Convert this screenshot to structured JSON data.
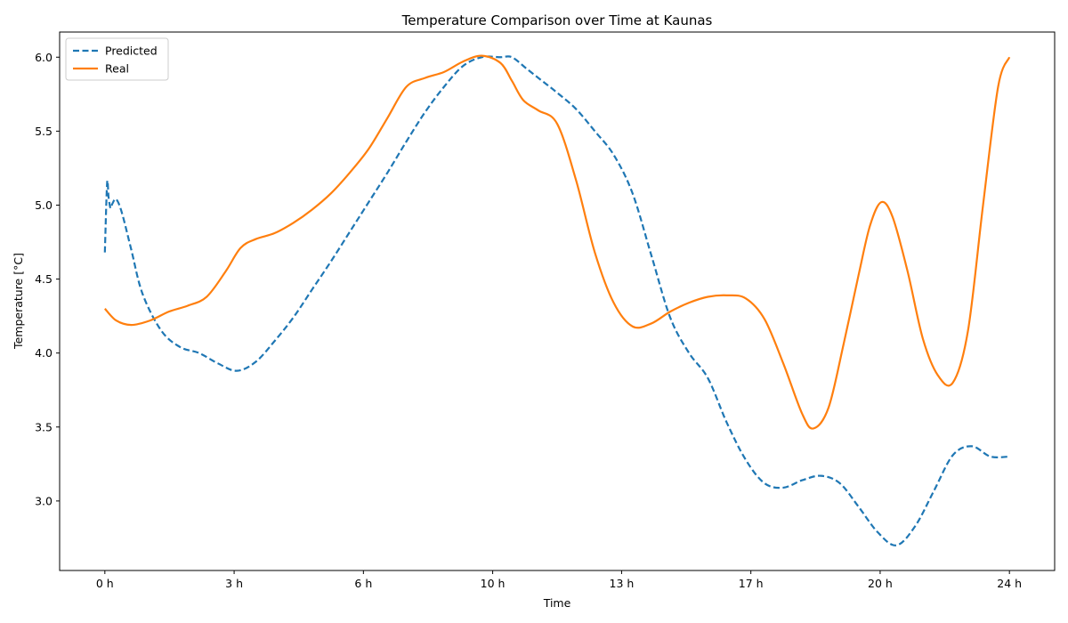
{
  "chart_data": {
    "type": "line",
    "title": "Temperature Comparison over Time at Kaunas",
    "xlabel": "Time",
    "ylabel": "Temperature [°C]",
    "xlim": [
      -1.2,
      25.2
    ],
    "ylim": [
      2.53,
      6.17
    ],
    "x_ticks": [
      {
        "value": 0,
        "label": "0 h"
      },
      {
        "value": 3.43,
        "label": "3 h"
      },
      {
        "value": 6.86,
        "label": "6 h"
      },
      {
        "value": 10.29,
        "label": "10 h"
      },
      {
        "value": 13.71,
        "label": "13 h"
      },
      {
        "value": 17.14,
        "label": "17 h"
      },
      {
        "value": 20.57,
        "label": "20 h"
      },
      {
        "value": 24,
        "label": "24 h"
      }
    ],
    "y_ticks": [
      {
        "value": 3.0,
        "label": "3.0"
      },
      {
        "value": 3.5,
        "label": "3.5"
      },
      {
        "value": 4.0,
        "label": "4.0"
      },
      {
        "value": 4.5,
        "label": "4.5"
      },
      {
        "value": 5.0,
        "label": "5.0"
      },
      {
        "value": 5.5,
        "label": "5.5"
      },
      {
        "value": 6.0,
        "label": "6.0"
      }
    ],
    "legend_position": "top-left",
    "series": [
      {
        "name": "Predicted",
        "color": "#1f77b4",
        "style": "dashed",
        "x": [
          0,
          0.06,
          0.1,
          0.15,
          0.2,
          0.3,
          0.45,
          0.7,
          1.0,
          1.5,
          2.0,
          2.5,
          3.0,
          3.5,
          4.0,
          4.5,
          5.0,
          5.5,
          6.0,
          6.5,
          7.0,
          7.5,
          8.0,
          8.5,
          9.0,
          9.5,
          10.0,
          10.5,
          10.8,
          11.2,
          11.6,
          12.0,
          12.5,
          13.0,
          13.5,
          14.0,
          14.5,
          15.0,
          15.5,
          16.0,
          16.5,
          17.0,
          17.5,
          18.0,
          18.5,
          19.0,
          19.5,
          20.0,
          20.5,
          21.0,
          21.5,
          22.0,
          22.5,
          23.0,
          23.5,
          24.0
        ],
        "values": [
          4.68,
          5.15,
          5.05,
          4.98,
          5.01,
          5.04,
          4.95,
          4.7,
          4.4,
          4.15,
          4.04,
          4.0,
          3.93,
          3.88,
          3.94,
          4.08,
          4.24,
          4.43,
          4.62,
          4.82,
          5.02,
          5.22,
          5.43,
          5.63,
          5.8,
          5.94,
          6.0,
          6.0,
          6.0,
          5.92,
          5.84,
          5.76,
          5.65,
          5.5,
          5.34,
          5.08,
          4.66,
          4.24,
          4.0,
          3.83,
          3.53,
          3.28,
          3.12,
          3.09,
          3.14,
          3.17,
          3.12,
          2.96,
          2.79,
          2.7,
          2.83,
          3.07,
          3.31,
          3.37,
          3.3,
          3.3
        ]
      },
      {
        "name": "Real",
        "color": "#ff7f0e",
        "style": "solid",
        "x": [
          0,
          0.3,
          0.7,
          1.2,
          1.7,
          2.2,
          2.7,
          3.2,
          3.6,
          4.0,
          4.5,
          5.0,
          5.5,
          6.0,
          6.5,
          7.0,
          7.5,
          8.0,
          8.5,
          9.0,
          9.5,
          10.0,
          10.5,
          10.8,
          11.1,
          11.5,
          12.0,
          12.5,
          13.0,
          13.5,
          14.0,
          14.5,
          15.0,
          15.5,
          16.0,
          16.5,
          17.0,
          17.5,
          18.0,
          18.5,
          18.8,
          19.2,
          19.6,
          20.0,
          20.3,
          20.6,
          20.9,
          21.3,
          21.7,
          22.1,
          22.5,
          22.9,
          23.3,
          23.7,
          24.0
        ],
        "values": [
          4.3,
          4.22,
          4.19,
          4.22,
          4.28,
          4.32,
          4.38,
          4.55,
          4.71,
          4.77,
          4.81,
          4.88,
          4.97,
          5.08,
          5.22,
          5.38,
          5.59,
          5.8,
          5.86,
          5.9,
          5.97,
          6.01,
          5.96,
          5.84,
          5.71,
          5.64,
          5.55,
          5.17,
          4.68,
          4.34,
          4.18,
          4.2,
          4.28,
          4.34,
          4.38,
          4.39,
          4.37,
          4.23,
          3.93,
          3.59,
          3.49,
          3.63,
          4.06,
          4.53,
          4.86,
          5.02,
          4.92,
          4.55,
          4.1,
          3.85,
          3.8,
          4.15,
          5.0,
          5.8,
          6.0
        ]
      }
    ]
  }
}
